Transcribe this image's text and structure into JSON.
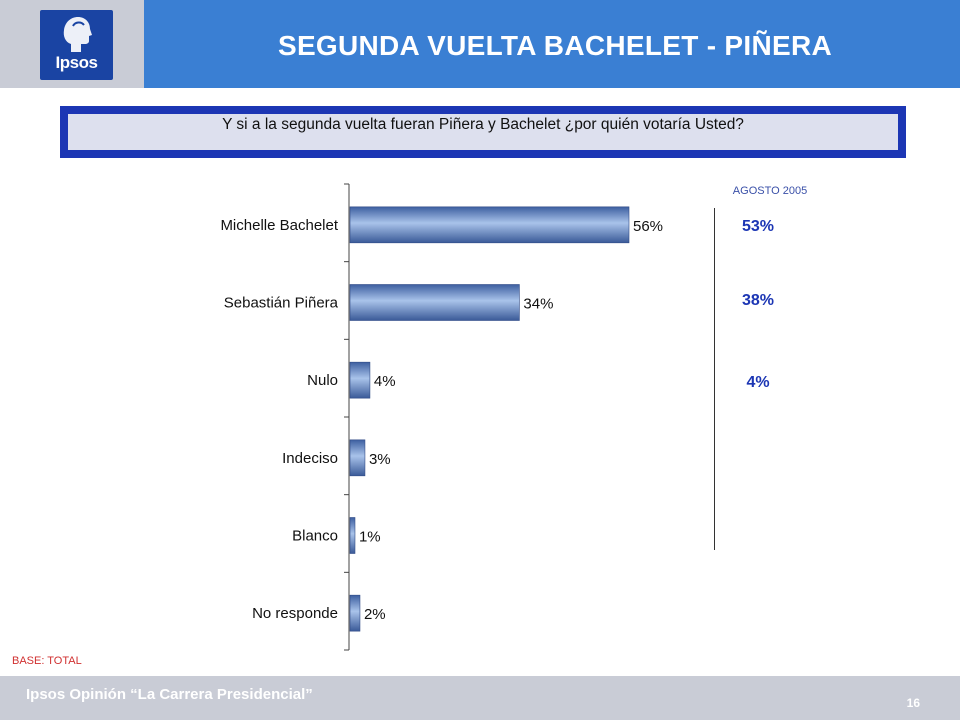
{
  "header": {
    "logo_text": "Ipsos",
    "title": "SEGUNDA VUELTA BACHELET - PIÑERA"
  },
  "question": {
    "text": "Y si a la segunda vuelta fueran Piñera y Bachelet ¿por quién votaría Usted?"
  },
  "comparison": {
    "period": "AGOSTO 2005",
    "values": [
      "53%",
      "38%",
      "4%"
    ]
  },
  "chart_data": {
    "type": "bar",
    "orientation": "horizontal",
    "categories": [
      "Michelle Bachelet",
      "Sebastián Piñera",
      "Nulo",
      "Indeciso",
      "Blanco",
      "No responde"
    ],
    "values": [
      56,
      34,
      4,
      3,
      1,
      2
    ],
    "value_labels": [
      "56%",
      "34%",
      "4%",
      "3%",
      "1%",
      "2%"
    ],
    "unit": "%",
    "xlim": [
      0,
      100
    ],
    "grid": false,
    "bar_color": "#6f8fc4"
  },
  "notes": {
    "base": "BASE: TOTAL"
  },
  "footer": {
    "text": "Ipsos Opinión “La Carrera Presidencial”",
    "page_number": "16"
  }
}
